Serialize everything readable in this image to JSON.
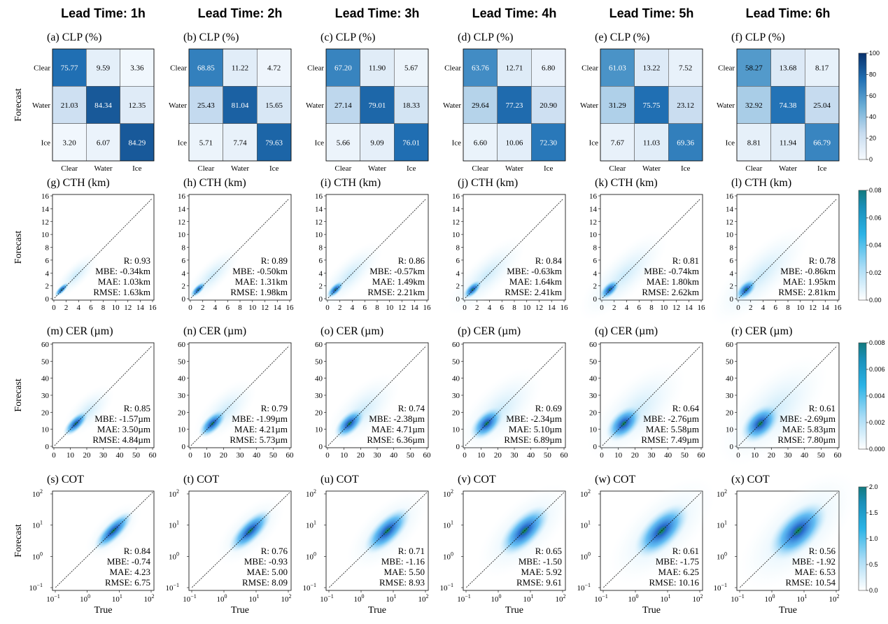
{
  "chart_data": {
    "type": "heatmap",
    "lead_times": [
      "Lead Time: 1h",
      "Lead Time: 2h",
      "Lead Time: 3h",
      "Lead Time: 4h",
      "Lead Time: 5h",
      "Lead Time: 6h"
    ],
    "axis_labels": {
      "forecast": "Forecast",
      "true": "True"
    },
    "clp": {
      "titles": [
        "(a) CLP (%)",
        "(b) CLP (%)",
        "(c) CLP (%)",
        "(d) CLP (%)",
        "(e) CLP (%)",
        "(f) CLP (%)"
      ],
      "classes": [
        "Clear",
        "Water",
        "Ice"
      ],
      "matrices": [
        [
          [
            75.77,
            9.59,
            3.36
          ],
          [
            21.03,
            84.34,
            12.35
          ],
          [
            3.2,
            6.07,
            84.29
          ]
        ],
        [
          [
            68.85,
            11.22,
            4.72
          ],
          [
            25.43,
            81.04,
            15.65
          ],
          [
            5.71,
            7.74,
            79.63
          ]
        ],
        [
          [
            67.2,
            11.9,
            5.67
          ],
          [
            27.14,
            79.01,
            18.33
          ],
          [
            5.66,
            9.09,
            76.01
          ]
        ],
        [
          [
            63.76,
            12.71,
            6.8
          ],
          [
            29.64,
            77.23,
            20.9
          ],
          [
            6.6,
            10.06,
            72.3
          ]
        ],
        [
          [
            61.03,
            13.22,
            7.52
          ],
          [
            31.29,
            75.75,
            23.12
          ],
          [
            7.67,
            11.03,
            69.36
          ]
        ],
        [
          [
            58.27,
            13.68,
            8.17
          ],
          [
            32.92,
            74.38,
            25.04
          ],
          [
            8.81,
            11.94,
            66.79
          ]
        ]
      ],
      "colorbar_ticks": [
        "0",
        "20",
        "40",
        "60",
        "80",
        "100"
      ]
    },
    "cth": {
      "titles": [
        "(g) CTH (km)",
        "(h) CTH (km)",
        "(i) CTH (km)",
        "(j) CTH (km)",
        "(k) CTH (km)",
        "(l) CTH (km)"
      ],
      "ticks": [
        "0",
        "2",
        "4",
        "6",
        "8",
        "10",
        "12",
        "14",
        "16"
      ],
      "stats": [
        [
          "R: 0.93",
          "MBE: -0.34km",
          "MAE: 1.03km",
          "RMSE: 1.63km"
        ],
        [
          "R: 0.89",
          "MBE: -0.50km",
          "MAE: 1.31km",
          "RMSE: 1.98km"
        ],
        [
          "R: 0.86",
          "MBE: -0.57km",
          "MAE: 1.49km",
          "RMSE: 2.21km"
        ],
        [
          "R: 0.84",
          "MBE: -0.63km",
          "MAE: 1.64km",
          "RMSE: 2.41km"
        ],
        [
          "R: 0.81",
          "MBE: -0.74km",
          "MAE: 1.80km",
          "RMSE: 2.62km"
        ],
        [
          "R: 0.78",
          "MBE: -0.86km",
          "MAE: 1.95km",
          "RMSE: 2.81km"
        ]
      ],
      "colorbar_ticks": [
        "0.00",
        "0.02",
        "0.04",
        "0.06",
        "0.08"
      ]
    },
    "cer": {
      "titles": [
        "(m) CER (µm)",
        "(n) CER (µm)",
        "(o) CER (µm)",
        "(p) CER (µm)",
        "(q) CER (µm)",
        "(r) CER (µm)"
      ],
      "ticks": [
        "0",
        "10",
        "20",
        "30",
        "40",
        "50",
        "60"
      ],
      "stats": [
        [
          "R: 0.85",
          "MBE: -1.57µm",
          "MAE: 3.50µm",
          "RMSE: 4.84µm"
        ],
        [
          "R: 0.79",
          "MBE: -1.99µm",
          "MAE: 4.21µm",
          "RMSE: 5.73µm"
        ],
        [
          "R: 0.74",
          "MBE: -2.38µm",
          "MAE: 4.71µm",
          "RMSE: 6.36µm"
        ],
        [
          "R: 0.69",
          "MBE: -2.34µm",
          "MAE: 5.10µm",
          "RMSE: 6.89µm"
        ],
        [
          "R: 0.64",
          "MBE: -2.76µm",
          "MAE: 5.58µm",
          "RMSE: 7.49µm"
        ],
        [
          "R: 0.61",
          "MBE: -2.69µm",
          "MAE: 5.83µm",
          "RMSE: 7.80µm"
        ]
      ],
      "colorbar_ticks": [
        "0.000",
        "0.002",
        "0.004",
        "0.006",
        "0.008"
      ]
    },
    "cot": {
      "titles": [
        "(s) COT",
        "(t) COT",
        "(u) COT",
        "(v) COT",
        "(w) COT",
        "(x) COT"
      ],
      "ticks": [
        "10",
        "10",
        "10",
        "10"
      ],
      "tick_exponents": [
        "−1",
        "0",
        "1",
        "2"
      ],
      "stats": [
        [
          "R: 0.84",
          "MBE: -0.74",
          "MAE: 4.23",
          "RMSE: 6.75"
        ],
        [
          "R: 0.76",
          "MBE: -0.93",
          "MAE: 5.00",
          "RMSE: 8.09"
        ],
        [
          "R: 0.71",
          "MBE: -1.16",
          "MAE: 5.50",
          "RMSE: 8.93"
        ],
        [
          "R: 0.65",
          "MBE: -1.50",
          "MAE: 5.92",
          "RMSE: 9.61"
        ],
        [
          "R: 0.61",
          "MBE: -1.75",
          "MAE: 6.25",
          "RMSE: 10.16"
        ],
        [
          "R: 0.56",
          "MBE: -1.92",
          "MAE: 6.53",
          "RMSE: 10.54"
        ]
      ],
      "colorbar_ticks": [
        "0.0",
        "0.5",
        "1.0",
        "1.5",
        "2.0"
      ]
    }
  }
}
